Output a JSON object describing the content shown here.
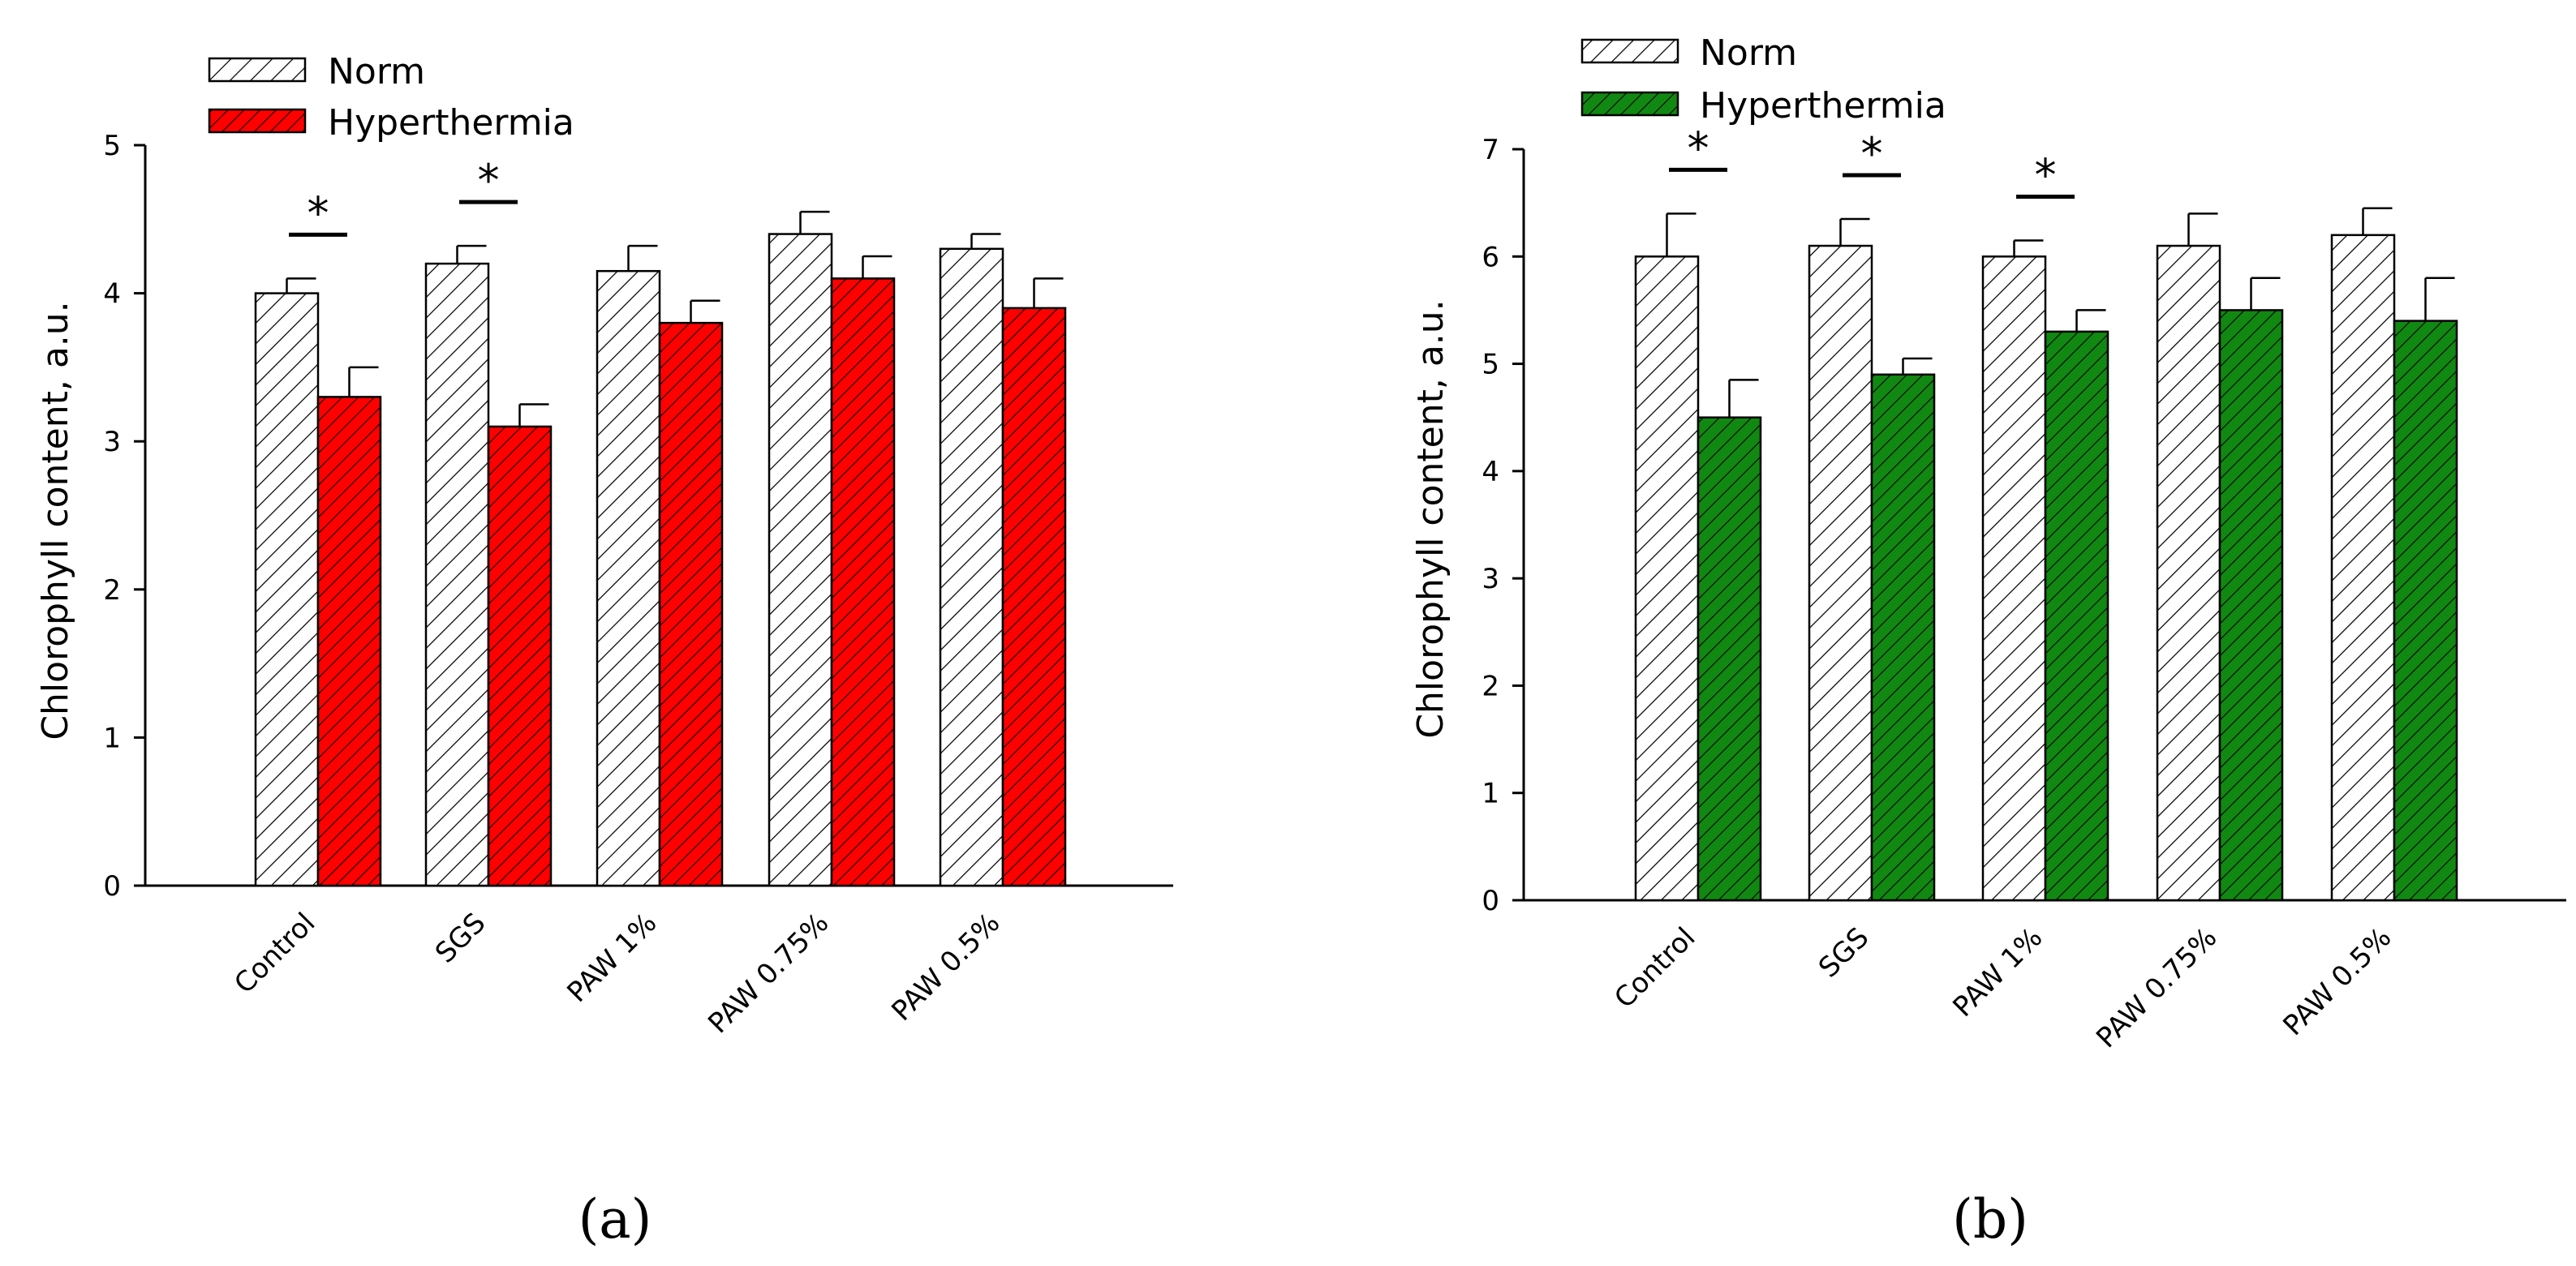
{
  "chart_data": [
    {
      "panel_label": "(a)",
      "type": "bar",
      "title": "",
      "xlabel": "",
      "ylabel": "Chlorophyll content, a.u.",
      "ylim": [
        0,
        5
      ],
      "yticks": [
        "0",
        "1",
        "2",
        "3",
        "4",
        "5"
      ],
      "categories": [
        "Control",
        "SGS",
        "PAW 1%",
        "PAW 0.75%",
        "PAW 0.5%"
      ],
      "legend_position": "top-left",
      "series": [
        {
          "name": "Norm",
          "color": "#ffffff",
          "values": [
            4.0,
            4.2,
            4.15,
            4.4,
            4.3
          ],
          "errors": [
            0.1,
            0.12,
            0.17,
            0.15,
            0.1
          ]
        },
        {
          "name": "Hyperthermia",
          "color": "#ff0000",
          "values": [
            3.3,
            3.1,
            3.8,
            4.1,
            3.9
          ],
          "errors": [
            0.2,
            0.15,
            0.15,
            0.15,
            0.2
          ]
        }
      ],
      "significance": [
        {
          "category": "Control",
          "label": "*"
        },
        {
          "category": "SGS",
          "label": "*"
        }
      ]
    },
    {
      "panel_label": "(b)",
      "type": "bar",
      "title": "",
      "xlabel": "",
      "ylabel": "Chlorophyll content, a.u.",
      "ylim": [
        0,
        7
      ],
      "yticks": [
        "0",
        "1",
        "2",
        "3",
        "4",
        "5",
        "6",
        "7"
      ],
      "categories": [
        "Control",
        "SGS",
        "PAW 1%",
        "PAW 0.75%",
        "PAW 0.5%"
      ],
      "legend_position": "top-left",
      "series": [
        {
          "name": "Norm",
          "color": "#ffffff",
          "values": [
            6.0,
            6.1,
            6.0,
            6.1,
            6.2
          ],
          "errors": [
            0.4,
            0.25,
            0.15,
            0.3,
            0.25
          ]
        },
        {
          "name": "Hyperthermia",
          "color": "#118811",
          "values": [
            4.5,
            4.9,
            5.3,
            5.5,
            5.4
          ],
          "errors": [
            0.35,
            0.15,
            0.2,
            0.3,
            0.4
          ]
        }
      ],
      "significance": [
        {
          "category": "Control",
          "label": "*"
        },
        {
          "category": "SGS",
          "label": "*"
        },
        {
          "category": "PAW 1%",
          "label": "*"
        }
      ]
    }
  ]
}
